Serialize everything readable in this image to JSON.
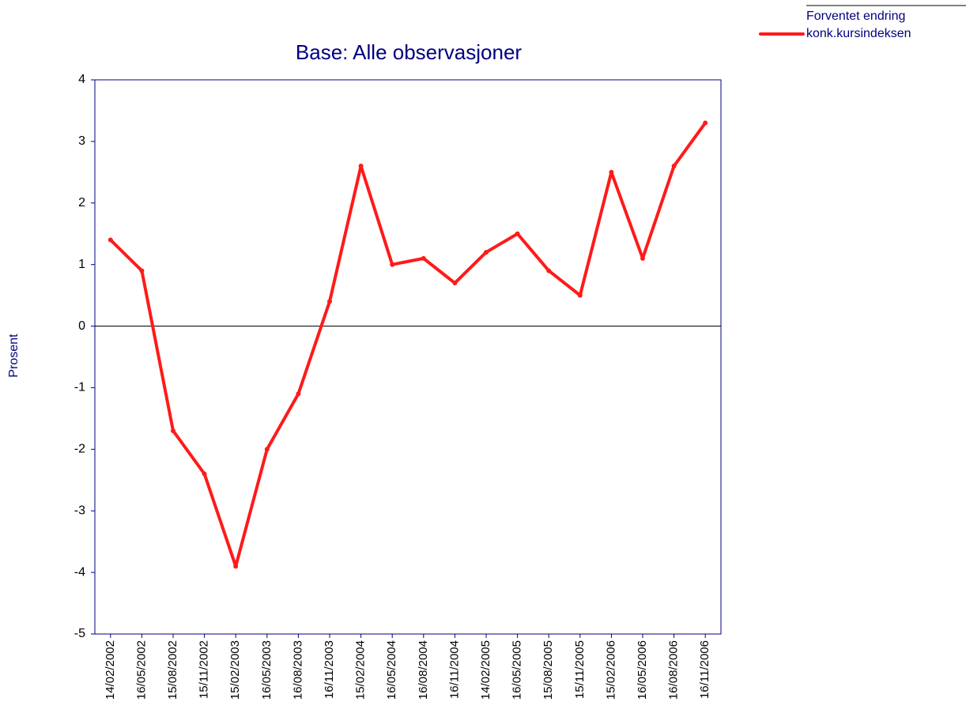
{
  "chart_data": {
    "type": "line",
    "title": "Base:  Alle observasjoner",
    "y_label": "Prosent",
    "categories": [
      "14/02/2002",
      "16/05/2002",
      "15/08/2002",
      "15/11/2002",
      "15/02/2003",
      "16/05/2003",
      "16/08/2003",
      "16/11/2003",
      "15/02/2004",
      "16/05/2004",
      "16/08/2004",
      "16/11/2004",
      "14/02/2005",
      "16/05/2005",
      "15/08/2005",
      "15/11/2005",
      "15/02/2006",
      "16/05/2006",
      "16/08/2006",
      "16/11/2006"
    ],
    "series": [
      {
        "name": "Forventet endring konk.kursindeksen",
        "color": "#ff1a1a",
        "values": [
          1.4,
          0.9,
          -1.7,
          -2.4,
          -3.9,
          -2.0,
          -1.1,
          0.4,
          2.6,
          1.0,
          1.1,
          0.7,
          1.2,
          1.5,
          0.9,
          0.5,
          2.5,
          1.1,
          2.6,
          3.3
        ]
      }
    ],
    "ylim": [
      -5,
      4
    ],
    "yticks": [
      -5,
      -4,
      -3,
      -2,
      -1,
      0,
      1,
      2,
      3,
      4
    ],
    "legend": "top-right"
  }
}
